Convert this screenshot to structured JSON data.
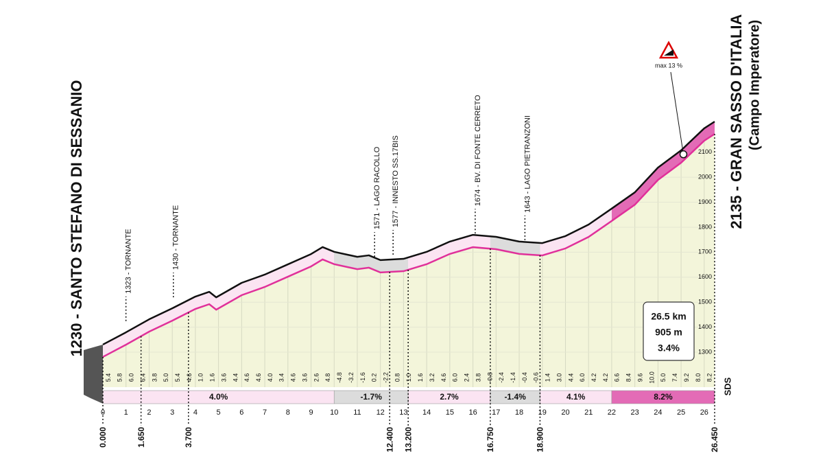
{
  "chart_data": {
    "type": "area",
    "start_label": "1230 - SANTO STEFANO DI SESSANIO",
    "finish_label": "2135 - GRAN SASSO D'ITALIA",
    "finish_sublabel": "(Campo Imperatore)",
    "x": [
      0,
      1,
      2,
      3,
      4,
      4.6,
      4.9,
      6,
      7,
      8,
      9,
      9.5,
      10,
      11,
      11.5,
      12,
      13,
      14,
      15,
      16,
      17,
      18,
      19,
      20,
      21,
      22,
      23,
      24,
      25,
      26,
      26.45
    ],
    "values": [
      1281,
      1330,
      1382,
      1426,
      1473,
      1492,
      1470,
      1528,
      1561,
      1602,
      1643,
      1671,
      1652,
      1632,
      1638,
      1619,
      1624,
      1652,
      1693,
      1720,
      1712,
      1693,
      1687,
      1715,
      1761,
      1825,
      1890,
      1989,
      2058,
      2146,
      2173
    ],
    "line_color": "#e0309a",
    "fill_color": "#f3f5da",
    "xlim": [
      0,
      26.45
    ],
    "ylim": [
      1160,
      2220
    ],
    "xticks": [
      0,
      1,
      2,
      3,
      4,
      5,
      6,
      7,
      8,
      9,
      10,
      11,
      12,
      13,
      14,
      15,
      16,
      17,
      18,
      19,
      20,
      21,
      22,
      23,
      24,
      25,
      26
    ],
    "yticks": [
      1300,
      1400,
      1500,
      1600,
      1700,
      1800,
      1900,
      2000,
      2100
    ],
    "km_gradients": [
      "5.4",
      "5.8",
      "6.0",
      "6.4",
      "3.8",
      "5.0",
      "5.4",
      "4.6",
      "1.0",
      "1.6",
      "3.6",
      "4.4",
      "4.6",
      "4.6",
      "4.0",
      "3.4",
      "4.6",
      "3.6",
      "2.6",
      "4.8",
      "-4.8",
      "-3.2",
      "-1.6",
      "0.2",
      "-2.2",
      "0.8",
      "1.0",
      "1.6",
      "3.2",
      "4.6",
      "6.0",
      "2.4",
      "3.8",
      "-0.8",
      "-2.4",
      "-1.4",
      "-0.4",
      "-0.6",
      "1.4",
      "3.0",
      "4.4",
      "6.0",
      "4.2",
      "4.2",
      "6.6",
      "8.4",
      "9.6",
      "10.0",
      "5.0",
      "7.4",
      "9.2",
      "8.0",
      "8.2"
    ],
    "sectors": [
      {
        "start": 0,
        "end": 10,
        "label": "4.0%",
        "color": "#fbe4f2"
      },
      {
        "start": 10,
        "end": 13.2,
        "label": "-1.7%",
        "color": "#dcdcdc"
      },
      {
        "start": 13.2,
        "end": 16.75,
        "label": "2.7%",
        "color": "#fbe4f2"
      },
      {
        "start": 16.75,
        "end": 18.9,
        "label": "-1.4%",
        "color": "#dcdcdc"
      },
      {
        "start": 18.9,
        "end": 22,
        "label": "4.1%",
        "color": "#fbe4f2"
      },
      {
        "start": 22,
        "end": 26.45,
        "label": "8.2%",
        "color": "#e36bb6"
      }
    ],
    "start_km": {
      "value": 0,
      "label": "0.000"
    },
    "finish_km": {
      "value": 26.45,
      "label": "26.450"
    },
    "waypoints": [
      {
        "label": "1323 - TORNANTE",
        "km": {
          "value": 1.65,
          "label": "1.650"
        }
      },
      {
        "label": "1430 - TORNANTE",
        "km": {
          "value": 3.7,
          "label": "3.700"
        }
      },
      {
        "label": "1571 - LAGO RACOLLO",
        "km": {
          "value": 12.4,
          "label": "12.400"
        }
      },
      {
        "label": "1577 - INNESTO SS.17BIS",
        "km": {
          "value": 13.2,
          "label": "13.200"
        }
      },
      {
        "label": "1674 - BV. DI FONTE CERRETO",
        "km": {
          "value": 16.75,
          "label": "16.750"
        }
      },
      {
        "label": "1643 - LAGO PIETRANZONI",
        "km": {
          "value": 18.9,
          "label": "18.900"
        }
      }
    ],
    "summary": [
      "26.5 km",
      "905 m",
      "3.4%"
    ],
    "max_gradient": {
      "label": "max 13 %",
      "km": 25.1
    },
    "logo": "SDS"
  }
}
